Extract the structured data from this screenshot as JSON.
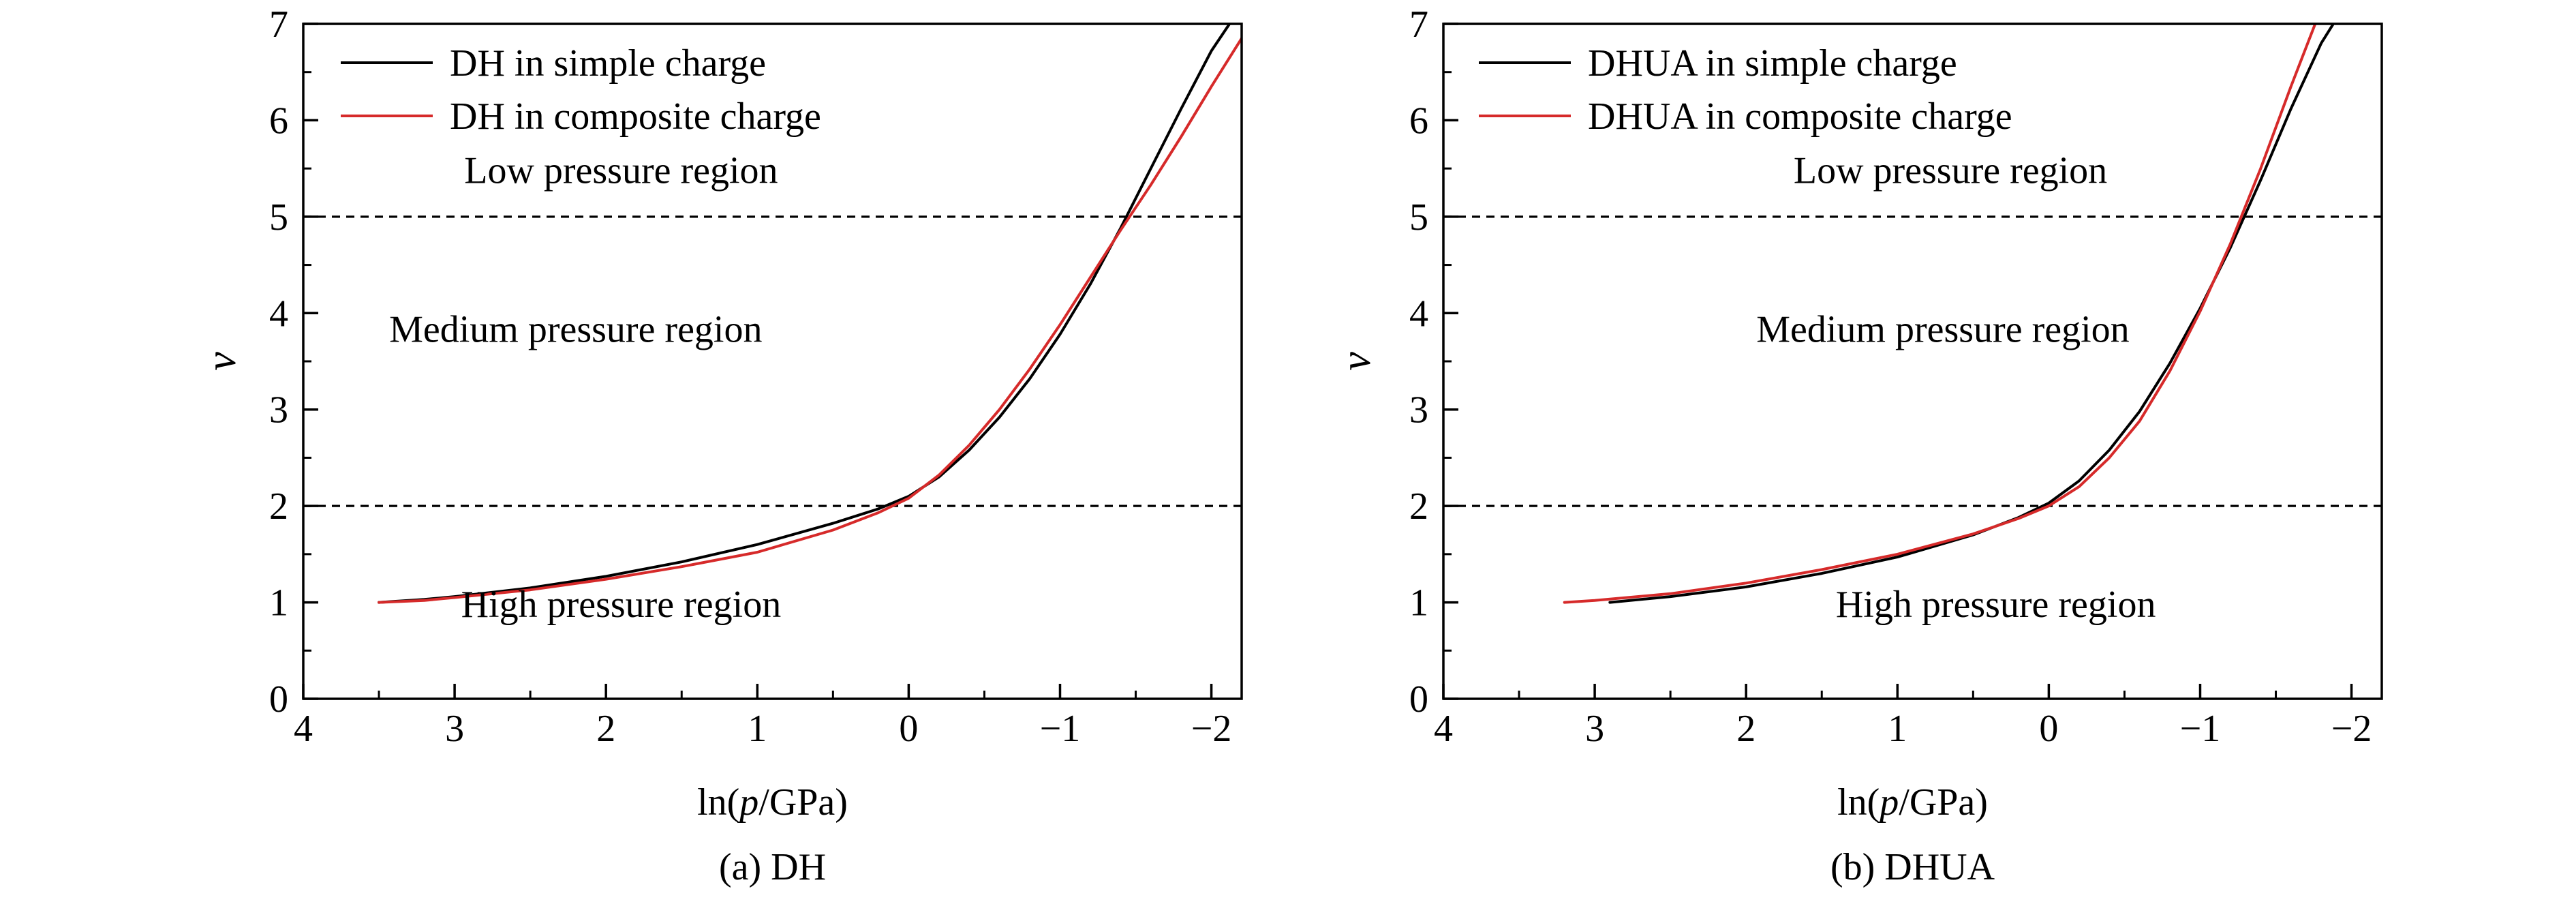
{
  "colors": {
    "black": "#000000",
    "red": "#d62a2a",
    "dashed": "#000000"
  },
  "chart_data": [
    {
      "type": "line",
      "caption": "(a) DH",
      "xlabel": "ln(p/GPa)",
      "ylabel": "ν",
      "xlim": [
        4,
        -2.2
      ],
      "ylim": [
        0,
        7
      ],
      "x_reversed": true,
      "xticks": [
        4,
        3,
        2,
        1,
        0,
        -1,
        -2
      ],
      "xtick_labels": [
        "4",
        "3",
        "2",
        "1",
        "0",
        "−1",
        "−2"
      ],
      "yticks": [
        0,
        1,
        2,
        3,
        4,
        5,
        6,
        7
      ],
      "ytick_labels": [
        "0",
        "1",
        "2",
        "3",
        "4",
        "5",
        "6",
        "7"
      ],
      "grid": false,
      "legend_position": "top-left",
      "thresholds": [
        2,
        5
      ],
      "annotations": [
        {
          "text": "Low pressure region",
          "x": 1.9,
          "y": 5.35
        },
        {
          "text": "Medium pressure region",
          "x": 2.2,
          "y": 3.7
        },
        {
          "text": "High pressure region",
          "x": 1.9,
          "y": 0.85
        }
      ],
      "series": [
        {
          "name": "DH in simple charge",
          "color": "#000000",
          "x": [
            3.5,
            3.2,
            3.0,
            2.5,
            2.0,
            1.5,
            1.0,
            0.5,
            0.2,
            0.0,
            -0.2,
            -0.4,
            -0.6,
            -0.8,
            -1.0,
            -1.2,
            -1.4,
            -1.6,
            -1.8,
            -2.0,
            -2.12
          ],
          "y": [
            1.0,
            1.03,
            1.06,
            1.15,
            1.27,
            1.42,
            1.6,
            1.82,
            1.97,
            2.1,
            2.3,
            2.58,
            2.92,
            3.32,
            3.78,
            4.3,
            4.88,
            5.5,
            6.12,
            6.72,
            7.0
          ]
        },
        {
          "name": "DH in composite charge",
          "color": "#d62a2a",
          "x": [
            3.5,
            3.2,
            3.0,
            2.5,
            2.0,
            1.5,
            1.0,
            0.5,
            0.2,
            0.0,
            -0.2,
            -0.4,
            -0.6,
            -0.8,
            -1.0,
            -1.2,
            -1.4,
            -1.6,
            -1.8,
            -2.0,
            -2.2
          ],
          "y": [
            1.0,
            1.02,
            1.05,
            1.13,
            1.24,
            1.37,
            1.52,
            1.75,
            1.93,
            2.08,
            2.32,
            2.63,
            3.0,
            3.42,
            3.88,
            4.37,
            4.86,
            5.33,
            5.83,
            6.35,
            6.85
          ]
        }
      ]
    },
    {
      "type": "line",
      "caption": "(b) DHUA",
      "xlabel": "ln(p/GPa)",
      "ylabel": "ν",
      "xlim": [
        4,
        -2.2
      ],
      "ylim": [
        0,
        7
      ],
      "x_reversed": true,
      "xticks": [
        4,
        3,
        2,
        1,
        0,
        -1,
        -2
      ],
      "xtick_labels": [
        "4",
        "3",
        "2",
        "1",
        "0",
        "−1",
        "−2"
      ],
      "yticks": [
        0,
        1,
        2,
        3,
        4,
        5,
        6,
        7
      ],
      "ytick_labels": [
        "0",
        "1",
        "2",
        "3",
        "4",
        "5",
        "6",
        "7"
      ],
      "grid": false,
      "legend_position": "top-left",
      "thresholds": [
        2,
        5
      ],
      "annotations": [
        {
          "text": "Low pressure region",
          "x": 0.65,
          "y": 5.35
        },
        {
          "text": "Medium pressure region",
          "x": 0.7,
          "y": 3.7
        },
        {
          "text": "High pressure region",
          "x": 0.35,
          "y": 0.85
        }
      ],
      "series": [
        {
          "name": "DHUA in simple charge",
          "color": "#000000",
          "x": [
            2.9,
            2.5,
            2.0,
            1.5,
            1.0,
            0.5,
            0.2,
            0.0,
            -0.2,
            -0.4,
            -0.6,
            -0.8,
            -1.0,
            -1.2,
            -1.4,
            -1.6,
            -1.8,
            -1.88
          ],
          "y": [
            1.0,
            1.06,
            1.16,
            1.3,
            1.47,
            1.7,
            1.88,
            2.03,
            2.26,
            2.58,
            2.98,
            3.48,
            4.05,
            4.68,
            5.38,
            6.12,
            6.8,
            7.0
          ]
        },
        {
          "name": "DHUA in composite charge",
          "color": "#d62a2a",
          "x": [
            3.2,
            3.0,
            2.5,
            2.0,
            1.5,
            1.0,
            0.5,
            0.2,
            0.0,
            -0.2,
            -0.4,
            -0.6,
            -0.8,
            -1.0,
            -1.2,
            -1.4,
            -1.6,
            -1.76
          ],
          "y": [
            1.0,
            1.02,
            1.09,
            1.2,
            1.34,
            1.5,
            1.71,
            1.87,
            2.0,
            2.2,
            2.5,
            2.88,
            3.4,
            4.02,
            4.72,
            5.5,
            6.35,
            7.0
          ]
        }
      ]
    }
  ]
}
